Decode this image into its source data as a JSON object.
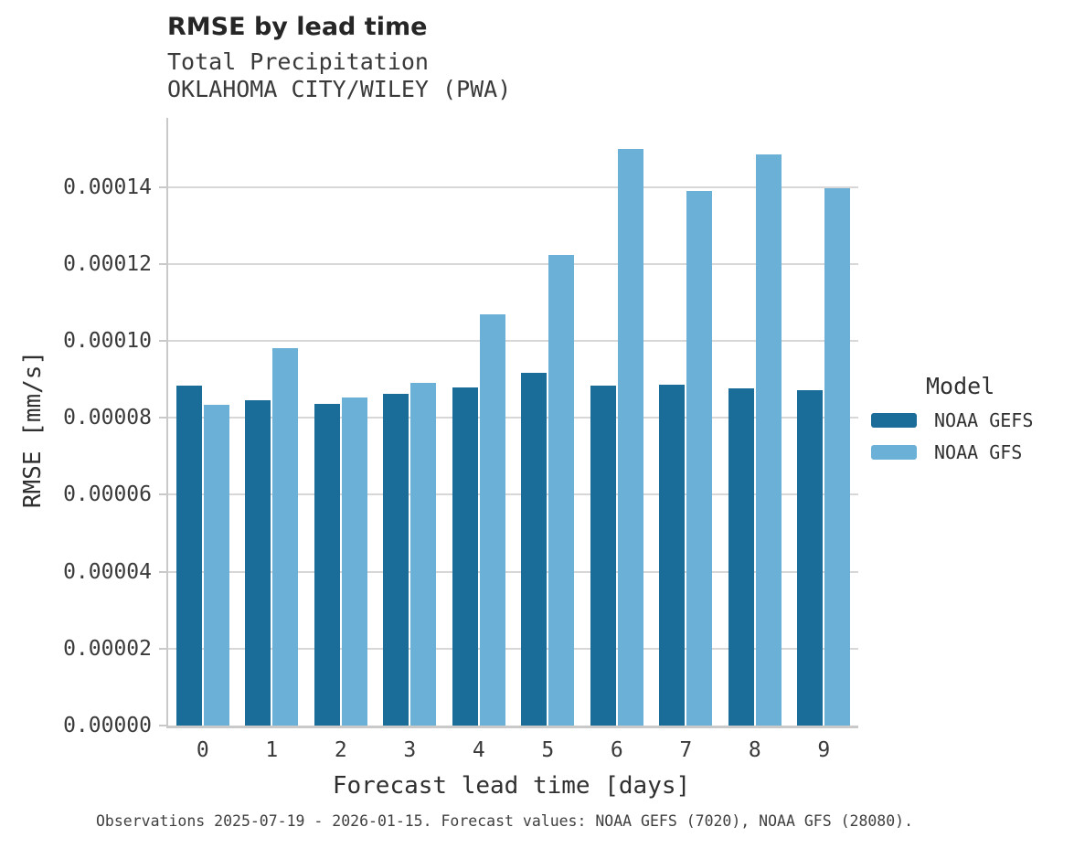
{
  "chart_data": {
    "type": "bar",
    "title": "RMSE by lead time",
    "subtitle_line1": "Total Precipitation",
    "subtitle_line2": "OKLAHOMA CITY/WILEY (PWA)",
    "xlabel": "Forecast lead time [days]",
    "ylabel": "RMSE [mm/s]",
    "categories": [
      "0",
      "1",
      "2",
      "3",
      "4",
      "5",
      "6",
      "7",
      "8",
      "9"
    ],
    "series": [
      {
        "name": "NOAA GEFS",
        "color": "#1a6d99",
        "values": [
          8.84e-05,
          8.46e-05,
          8.37e-05,
          8.62e-05,
          8.8e-05,
          9.17e-05,
          8.85e-05,
          8.87e-05,
          8.77e-05,
          8.72e-05
        ]
      },
      {
        "name": "NOAA GFS",
        "color": "#6bb0d7",
        "values": [
          8.33e-05,
          9.82e-05,
          8.54e-05,
          8.91e-05,
          0.000107,
          0.0001223,
          0.00015,
          0.0001391,
          0.0001485,
          0.0001398
        ]
      }
    ],
    "ylim": [
      0,
      0.000158
    ],
    "yticks": [
      {
        "value": 0.0,
        "label": "0.00000"
      },
      {
        "value": 2e-05,
        "label": "0.00002"
      },
      {
        "value": 4e-05,
        "label": "0.00004"
      },
      {
        "value": 6e-05,
        "label": "0.00006"
      },
      {
        "value": 8e-05,
        "label": "0.00008"
      },
      {
        "value": 0.0001,
        "label": "0.00010"
      },
      {
        "value": 0.00012,
        "label": "0.00012"
      },
      {
        "value": 0.00014,
        "label": "0.00014"
      }
    ],
    "grid": "horizontal",
    "legend_title": "Model",
    "legend_position": "right",
    "caption": "Observations 2025-07-19 - 2026-01-15. Forecast values: NOAA GEFS (7020), NOAA GFS (28080)."
  }
}
